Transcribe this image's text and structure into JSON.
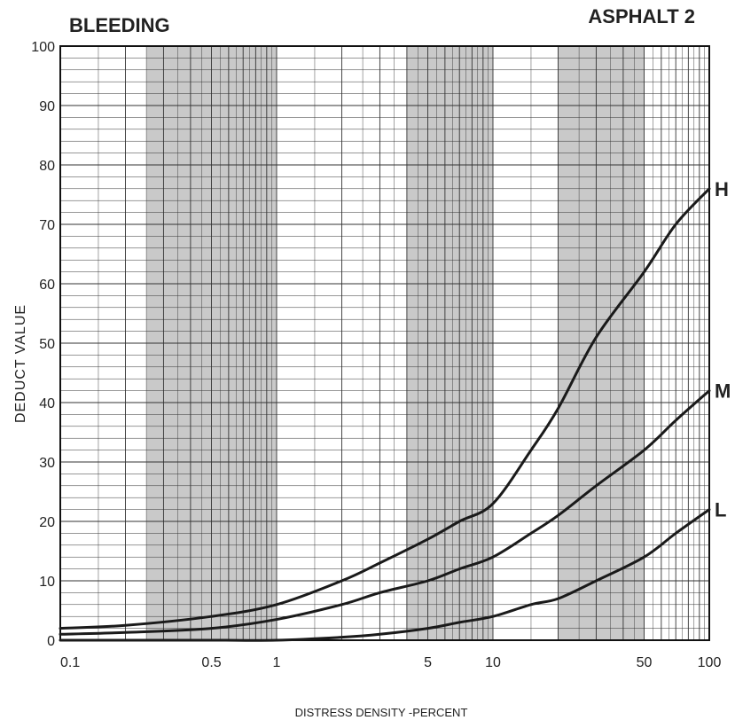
{
  "chart_data": {
    "type": "line",
    "title": "BLEEDING",
    "subtitle": "ASPHALT 2",
    "xlabel": "DISTRESS DENSITY -PERCENT",
    "ylabel": "DEDUCT VALUE",
    "xscale": "log",
    "xlim": [
      0.1,
      100
    ],
    "ylim": [
      0,
      100
    ],
    "grid": true,
    "xticks": [
      {
        "value": 0.1,
        "label": "0.1"
      },
      {
        "value": 0.5,
        "label": "0.5"
      },
      {
        "value": 1,
        "label": "1"
      },
      {
        "value": 5,
        "label": "5"
      },
      {
        "value": 10,
        "label": "10"
      },
      {
        "value": 50,
        "label": "50"
      },
      {
        "value": 100,
        "label": "100"
      }
    ],
    "yticks": [
      0,
      10,
      20,
      30,
      40,
      50,
      60,
      70,
      80,
      90,
      100
    ],
    "shaded_bands": [
      [
        0.25,
        0.5
      ],
      [
        0.5,
        1
      ],
      [
        4,
        10
      ],
      [
        20,
        50
      ]
    ],
    "series": [
      {
        "name": "H",
        "x": [
          0.1,
          0.2,
          0.5,
          1,
          2,
          3,
          5,
          7,
          10,
          15,
          20,
          30,
          50,
          70,
          100
        ],
        "y": [
          2,
          2.5,
          4,
          6,
          10,
          13,
          17,
          20,
          23,
          32,
          39,
          51,
          62,
          70,
          76
        ]
      },
      {
        "name": "M",
        "x": [
          0.1,
          0.2,
          0.5,
          1,
          2,
          3,
          5,
          7,
          10,
          15,
          20,
          30,
          50,
          70,
          100
        ],
        "y": [
          1,
          1.3,
          2,
          3.5,
          6,
          8,
          10,
          12,
          14,
          18,
          21,
          26,
          32,
          37,
          42
        ]
      },
      {
        "name": "L",
        "x": [
          0.1,
          0.2,
          0.5,
          1,
          2,
          3,
          5,
          7,
          10,
          15,
          20,
          30,
          50,
          70,
          100
        ],
        "y": [
          0,
          0,
          0,
          0,
          0.5,
          1,
          2,
          3,
          4,
          6,
          7,
          10,
          14,
          18,
          22
        ]
      }
    ]
  }
}
